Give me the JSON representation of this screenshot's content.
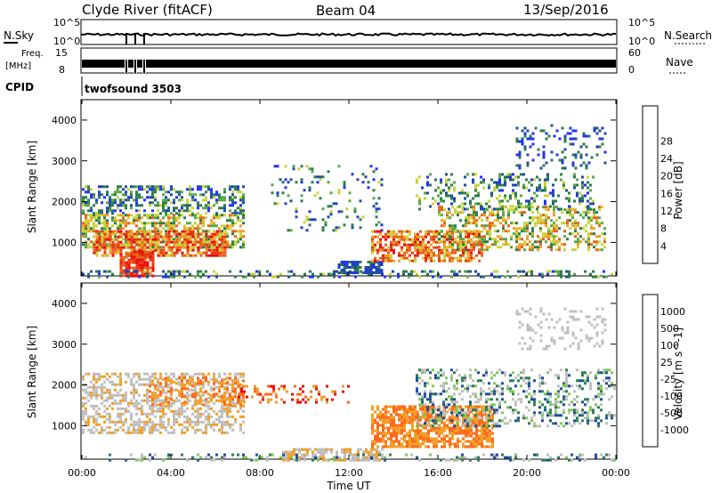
{
  "header": {
    "title": "Clyde River (fitACF)",
    "beam": "Beam 04",
    "date": "13/Sep/2016"
  },
  "status_panels": {
    "nsky_label": "N.Sky",
    "nsky_tick_top": "10^5",
    "nsky_tick_bottom": "10^0",
    "nsearch_label": "N.Search",
    "nsearch_tick_top": "10^5",
    "nsearch_tick_bottom": "10^0",
    "freq_label": "Freq.",
    "freq_unit": "[MHz]",
    "freq_tick_top": "15",
    "freq_tick_bottom": "8",
    "nave_label": "Nave",
    "nave_tick_top": "60",
    "nave_tick_bottom": "0",
    "cpid_label": "CPID",
    "cpid_value": "twofsound 3503"
  },
  "colors": {
    "power": [
      "#2233ee",
      "#1d4f9e",
      "#2a7e4a",
      "#5aa84a",
      "#cbd23a",
      "#f0a02a",
      "#e8641c",
      "#e43a12",
      "#ee0b0b"
    ],
    "velocity": [
      "#ee0b0b",
      "#ff6a1c",
      "#f0a02a",
      "#bfbfbf",
      "#bfbfbf",
      "#7fc85a",
      "#2f7e58",
      "#1d4f9e",
      "#2233ee"
    ]
  },
  "chart_data": [
    {
      "type": "heatmap",
      "name": "power",
      "ylabel": "Slant Range [km]",
      "xlabel": "",
      "x_ticks": [
        "00:00",
        "04:00",
        "08:00",
        "12:00",
        "16:00",
        "20:00",
        "00:00"
      ],
      "x_tick_hours": [
        0,
        4,
        8,
        12,
        16,
        20,
        24
      ],
      "xlim": [
        0,
        24
      ],
      "y_ticks": [
        1000,
        2000,
        3000,
        4000
      ],
      "ylim": [
        180,
        4500
      ],
      "colorbar_label": "Power [dB]",
      "colorbar_ticks": [
        4,
        8,
        12,
        16,
        20,
        24,
        28
      ],
      "colorbar_range": [
        0,
        30
      ]
    },
    {
      "type": "heatmap",
      "name": "velocity",
      "ylabel": "Slant Range [km]",
      "xlabel": "Time UT",
      "x_ticks": [
        "00:00",
        "04:00",
        "08:00",
        "12:00",
        "16:00",
        "20:00",
        "00:00"
      ],
      "x_tick_hours": [
        0,
        4,
        8,
        12,
        16,
        20,
        24
      ],
      "xlim": [
        0,
        24
      ],
      "y_ticks": [
        1000,
        2000,
        3000,
        4000
      ],
      "ylim": [
        180,
        4500
      ],
      "colorbar_label": "Velocity [m s^-1]",
      "colorbar_ticks": [
        "1000",
        "500",
        "100",
        "25",
        "-25",
        "-100",
        "-500",
        "-1000"
      ]
    }
  ]
}
